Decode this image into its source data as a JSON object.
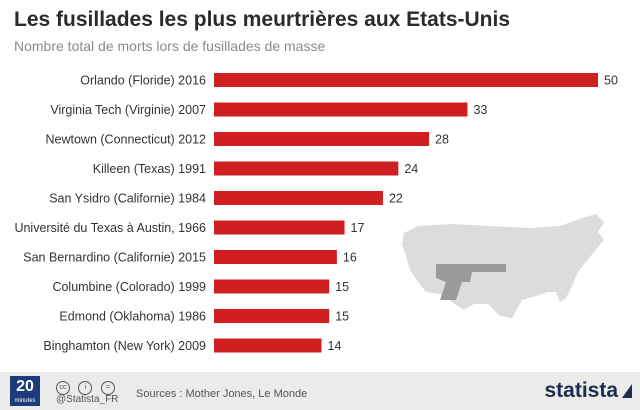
{
  "header": {
    "title": "Les fusillades les plus meurtrières aux Etats-Unis",
    "subtitle": "Nombre total de morts lors de fusillades de masse"
  },
  "colors": {
    "bar": "#d01f20",
    "map": "#dcdcdc",
    "footer_bg": "#ebebeb",
    "brand": "#1c2d4f"
  },
  "chart_data": {
    "type": "bar",
    "orientation": "horizontal",
    "title": "Les fusillades les plus meurtrières aux Etats-Unis",
    "subtitle": "Nombre total de morts lors de fusillades de masse",
    "categories": [
      "Orlando (Floride) 2016",
      "Virginia Tech (Virginie) 2007",
      "Newtown (Connecticut) 2012",
      "Killeen (Texas) 1991",
      "San Ysidro (Californie) 1984",
      "Université du Texas à Austin, 1966",
      "San Bernardino (Californie) 2015",
      "Columbine (Colorado) 1999",
      "Edmond (Oklahoma) 1986",
      "Binghamton (New York) 2009"
    ],
    "values": [
      50,
      33,
      28,
      24,
      22,
      17,
      16,
      15,
      15,
      14
    ],
    "xlim": [
      0,
      50
    ],
    "grid": false,
    "data_labels": true
  },
  "footer": {
    "logo_text": "20",
    "logo_subtext": "minutes",
    "handle": "@Statista_FR",
    "sources": "Sources : Mother Jones, Le Monde",
    "brand": "statista",
    "cc_icons": [
      "creative-commons-icon",
      "attribution-icon",
      "no-derivatives-icon"
    ]
  }
}
